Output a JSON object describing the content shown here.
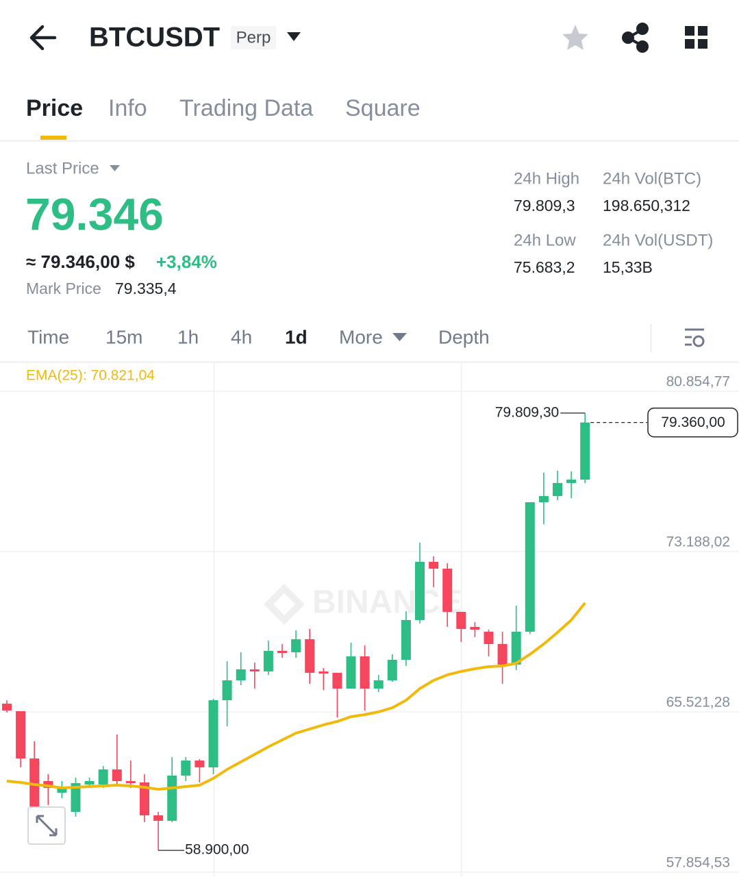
{
  "header": {
    "symbol": "BTCUSDT",
    "badge": "Perp"
  },
  "tabs": [
    "Price",
    "Info",
    "Trading Data",
    "Square"
  ],
  "summary": {
    "last_price_label": "Last Price",
    "last_price": "79.346",
    "approx": "≈ 79.346,00 $",
    "change": "+3,84%",
    "mark_price_label": "Mark Price",
    "mark_price": "79.335,4",
    "stats": [
      {
        "label": "24h High",
        "value": "79.809,3"
      },
      {
        "label": "24h Vol(BTC)",
        "value": "198.650,312"
      },
      {
        "label": "24h Low",
        "value": "75.683,2"
      },
      {
        "label": "24h Vol(USDT)",
        "value": "15,33B"
      }
    ]
  },
  "intervals": [
    "Time",
    "15m",
    "1h",
    "4h",
    "1d",
    "More",
    "Depth"
  ],
  "chart_data": {
    "type": "candlestick",
    "watermark": "BINANCE",
    "ema_label": "EMA(25): 70.821,04",
    "ylim": [
      57854.53,
      80854.77
    ],
    "yticks": [
      {
        "value": 57854.53,
        "label": "57.854,53"
      },
      {
        "value": 65521.28,
        "label": "65.521,28"
      },
      {
        "value": 73188.02,
        "label": "73.188,02"
      },
      {
        "value": 80854.77,
        "label": "80.854,77"
      }
    ],
    "grid": true,
    "up_color": "#2ebd85",
    "down_color": "#f6465d",
    "open": [
      65915,
      65554,
      63293,
      62212,
      61655,
      60738,
      62048,
      62048,
      62769,
      62212,
      62147,
      60574,
      60312,
      62474,
      63195,
      62868,
      66078,
      67029,
      67553,
      67455,
      68437,
      68372,
      68994,
      67455,
      67389,
      66635,
      68175,
      66635,
      67029,
      68012,
      69912,
      72697,
      72369,
      70305,
      69584,
      69355,
      68765,
      67782,
      69355,
      75547,
      75842,
      76465,
      76628
    ],
    "high": [
      66078,
      65554,
      64113,
      62540,
      62212,
      62376,
      62376,
      62933,
      64440,
      63195,
      62540,
      60738,
      63359,
      63359,
      63261,
      66144,
      67946,
      68372,
      67880,
      68929,
      68765,
      69420,
      69486,
      67618,
      67389,
      68831,
      68700,
      67291,
      68274,
      70338,
      73614,
      72959,
      72631,
      70305,
      69814,
      69453,
      69355,
      70600,
      75547,
      76956,
      77054,
      77022,
      79809.3
    ],
    "low": [
      65489,
      62868,
      60902,
      61066,
      61393,
      60509,
      61885,
      61885,
      62048,
      61885,
      60246,
      58900,
      60246,
      62212,
      62147,
      62540,
      64833,
      66799,
      66635,
      67291,
      68110,
      68110,
      66865,
      66570,
      65259,
      66635,
      65587,
      66472,
      66963,
      67717,
      69748,
      71484,
      69584,
      68863,
      69093,
      68175,
      66865,
      67520,
      69257,
      74499,
      75646,
      75744,
      76465
    ],
    "close": [
      65587,
      63293,
      61000,
      61885,
      61885,
      62114,
      62212,
      62769,
      62212,
      62114,
      60574,
      60312,
      62474,
      63195,
      62868,
      66078,
      67029,
      67553,
      67455,
      68437,
      68339,
      68994,
      67389,
      67356,
      66635,
      68175,
      66635,
      67029,
      68012,
      69912,
      72697,
      72369,
      70305,
      69486,
      69453,
      68765,
      67782,
      69355,
      75547,
      75842,
      76465,
      76628,
      79360
    ],
    "ema": {
      "color": "#f0b90b",
      "values": [
        62212,
        62147,
        62048,
        61983,
        61885,
        61917,
        61950,
        61983,
        62016,
        61983,
        61917,
        61819,
        61885,
        61950,
        62016,
        62343,
        62769,
        63130,
        63490,
        63850,
        64178,
        64506,
        64702,
        64899,
        65063,
        65292,
        65391,
        65521,
        65718,
        66078,
        66635,
        67029,
        67291,
        67455,
        67585,
        67684,
        67717,
        67848,
        68274,
        68765,
        69322,
        69912,
        70731
      ]
    },
    "high_annotation": {
      "value": 79809.3,
      "label": "79.809,30"
    },
    "low_annotation": {
      "value": 58900,
      "label": "58.900,00"
    },
    "last_price_annotation": {
      "value": 79360,
      "label": "79.360,00"
    }
  }
}
